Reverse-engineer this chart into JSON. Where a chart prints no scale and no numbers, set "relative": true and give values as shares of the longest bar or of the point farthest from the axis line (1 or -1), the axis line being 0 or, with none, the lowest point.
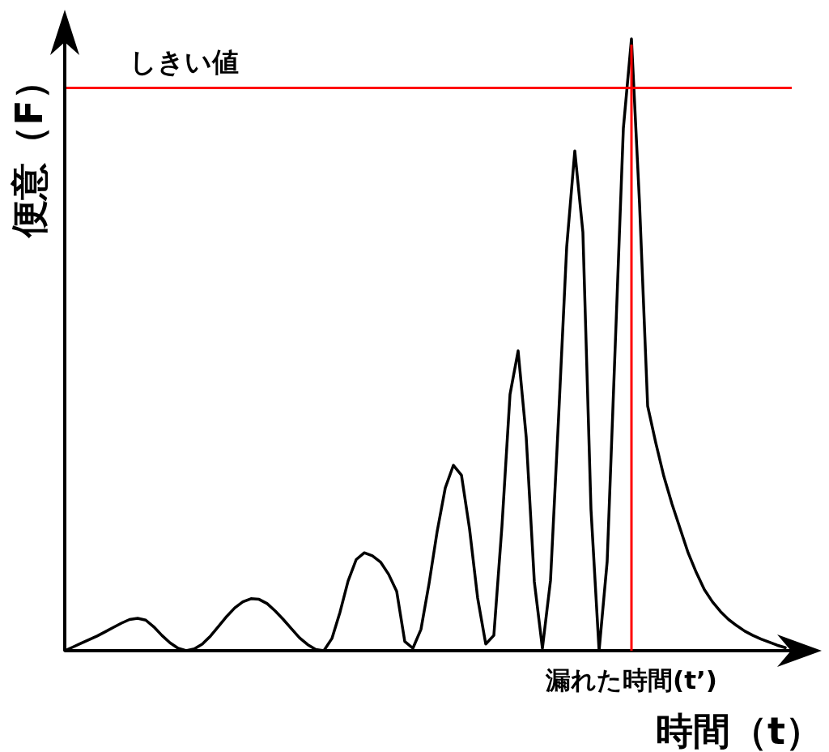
{
  "chart_data": {
    "type": "line",
    "relative": true,
    "xlabel": "時間（t）",
    "ylabel": "便意（F）",
    "categories": [
      null,
      null,
      null,
      null,
      null,
      null,
      null,
      null,
      null,
      null,
      null,
      null,
      null,
      null,
      null,
      null,
      null,
      null,
      null,
      null,
      null,
      null,
      null,
      null,
      null,
      null,
      null,
      null,
      null,
      null,
      null,
      null,
      null,
      null,
      null,
      null,
      null,
      null,
      null,
      null,
      null,
      null,
      null,
      null,
      null,
      null,
      null,
      null,
      null,
      null,
      null,
      null,
      null,
      null,
      null,
      null,
      null,
      null,
      null,
      null,
      null,
      null,
      null,
      null,
      null,
      null,
      null,
      null,
      null,
      null,
      null,
      null,
      null,
      null,
      null,
      null,
      null,
      null,
      null,
      null,
      null,
      null,
      null,
      null,
      null,
      null,
      null,
      null,
      null,
      null
    ],
    "series": [
      {
        "color": "#000000",
        "values": [
          0,
          0.006,
          0.012,
          0.018,
          0.024,
          0.031,
          0.038,
          0.045,
          0.051,
          0.053,
          0.05,
          0.039,
          0.025,
          0.013,
          0.004,
          0,
          0.003,
          0.011,
          0.024,
          0.04,
          0.056,
          0.07,
          0.08,
          0.085,
          0.084,
          0.077,
          0.065,
          0.051,
          0.036,
          0.021,
          0.01,
          0.002,
          0,
          0.02,
          0.063,
          0.114,
          0.149,
          0.16,
          0.155,
          0.145,
          0.125,
          0.097,
          0.015,
          0.004,
          0.035,
          0.11,
          0.195,
          0.266,
          0.303,
          0.287,
          0.199,
          0.086,
          0.011,
          0.025,
          0.203,
          0.419,
          0.49,
          0.349,
          0.113,
          0.004,
          0.115,
          0.382,
          0.66,
          0.817,
          0.684,
          0.231,
          0,
          0.146,
          0.5,
          0.854,
          1,
          0.73,
          0.4,
          0.34,
          0.285,
          0.24,
          0.2,
          0.16,
          0.128,
          0.1,
          0.08,
          0.064,
          0.051,
          0.041,
          0.032,
          0.025,
          0.019,
          0.014,
          0.009,
          0.005
        ]
      }
    ],
    "ref_lines": [
      {
        "axis": "y",
        "value": 0.92,
        "label": "しきい値",
        "color": "#ff0000"
      }
    ],
    "annotations": [
      "漏れた時間(t’)"
    ]
  }
}
